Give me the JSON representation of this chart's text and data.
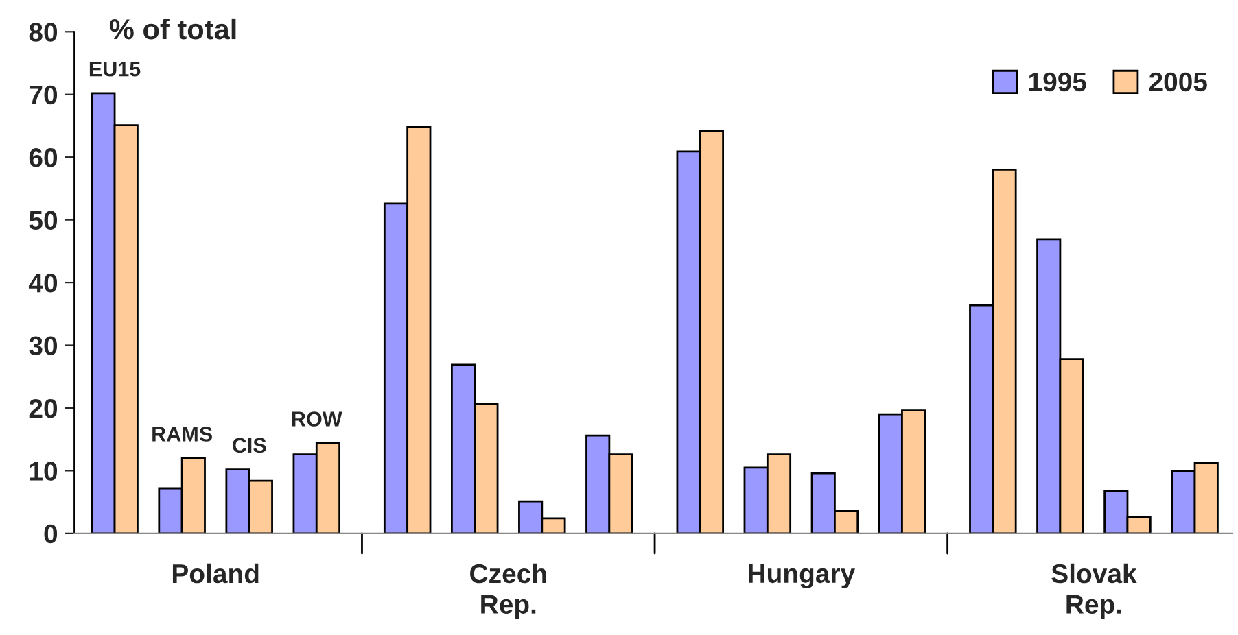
{
  "chart_data": {
    "type": "bar",
    "ylabel": "% of total",
    "categories": [
      "EU15",
      "RAMS",
      "CIS",
      "ROW",
      null,
      null,
      null,
      null,
      null,
      null,
      null,
      null,
      null,
      null,
      null,
      null
    ],
    "series": [
      {
        "name": "1995",
        "color": "#9999ff",
        "values": [
          70.2,
          7.2,
          10.2,
          12.6,
          52.6,
          26.9,
          5.1,
          15.6,
          60.9,
          10.5,
          9.6,
          19.0,
          36.4,
          46.9,
          6.8,
          9.9
        ]
      },
      {
        "name": "2005",
        "color": "#ffcc99",
        "values": [
          65.1,
          12.0,
          8.4,
          14.4,
          64.8,
          20.6,
          2.4,
          12.6,
          64.2,
          12.6,
          3.6,
          19.6,
          58.0,
          27.8,
          2.6,
          11.3
        ]
      }
    ],
    "annotations": [
      "Poland",
      "Czech\nRep.",
      "Hungary",
      "Slovak\nRep."
    ],
    "ylim": [
      0,
      80
    ],
    "yticks": [
      0,
      10,
      20,
      30,
      40,
      50,
      60,
      70,
      80
    ],
    "grid": false,
    "legend": "top right"
  }
}
